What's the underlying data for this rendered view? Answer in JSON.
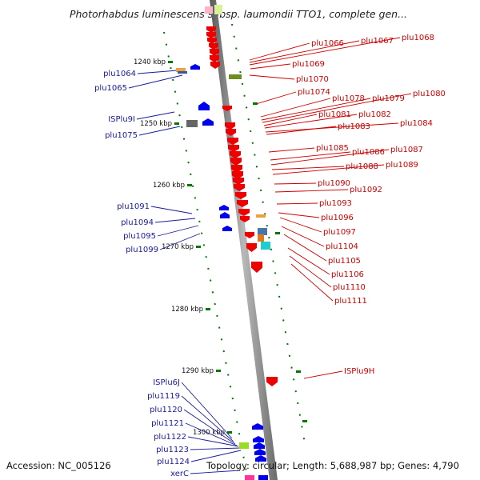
{
  "title": "Photorhabdus luminescens subsp. laumondii TTO1, complete gen...",
  "footer": {
    "accession": "Accession: NC_005126",
    "summary": "Topology: circular; Length: 5,688,987 bp; Genes: 4,790"
  },
  "colors": {
    "forward": "#0000ee",
    "reverse": "#ee0000",
    "label_forward": "#1a1a99",
    "label_reverse": "#cc0000",
    "tick": "#007700",
    "axis": "#8c8c8c"
  },
  "ticks": [
    "1240 kbp",
    "1250 kbp",
    "1260 kbp",
    "1270 kbp",
    "1280 kbp",
    "1290 kbp",
    "1300 kbp"
  ],
  "left_labels": [
    "plu1064",
    "plu1065",
    "ISPlu9I",
    "plu1075",
    "plu1091",
    "plu1094",
    "plu1095",
    "plu1099",
    "ISPlu6J",
    "plu1119",
    "plu1120",
    "plu1121",
    "plu1122",
    "plu1123",
    "plu1124",
    "xerC"
  ],
  "right_labels": [
    "plu1066",
    "plu1067",
    "plu1068",
    "plu1069",
    "plu1070",
    "plu1074",
    "plu1078",
    "plu1079",
    "plu1080",
    "plu1081",
    "plu1082",
    "plu1084",
    "plu1083",
    "plu1085",
    "plu1086",
    "plu1087",
    "plu1088",
    "plu1089",
    "plu1090",
    "plu1092",
    "plu1093",
    "plu1096",
    "plu1097",
    "plu1104",
    "plu1105",
    "plu1106",
    "plu1110",
    "plu1111",
    "ISPlu9H"
  ]
}
